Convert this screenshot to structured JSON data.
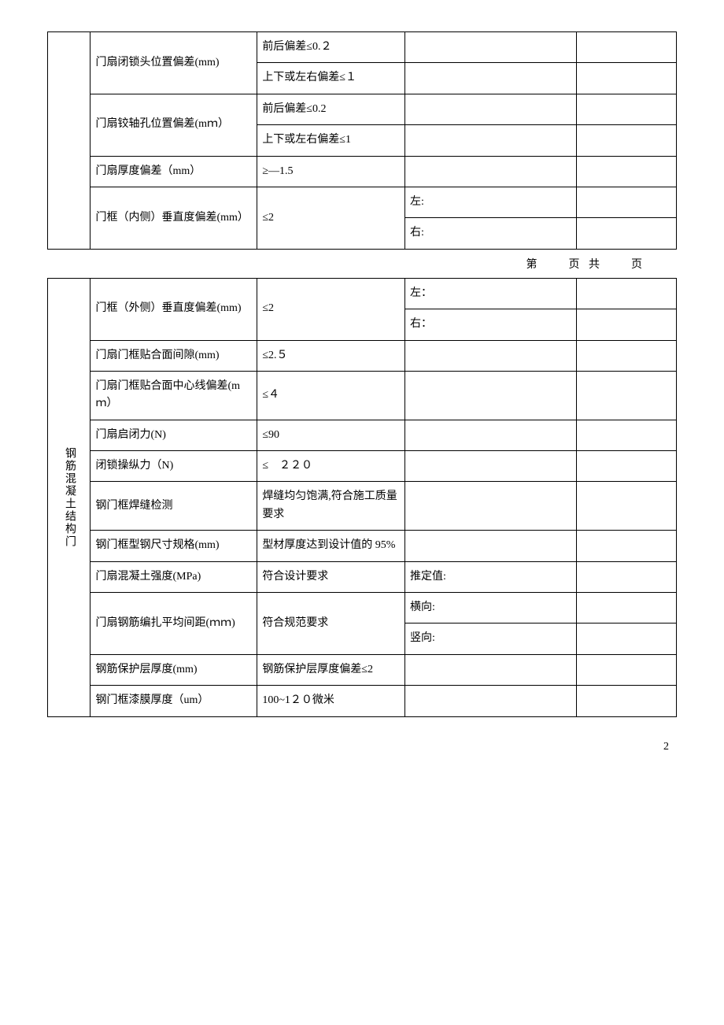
{
  "table1": {
    "rows": [
      {
        "item": "门扇闭锁头位置偏差(mm)",
        "spec": "前后偏差≤0.２",
        "val1": "",
        "val2": "",
        "rowspan": 2
      },
      {
        "item": "",
        "spec": "上下或左右偏差≤１",
        "val1": "",
        "val2": ""
      },
      {
        "item": "门扇铰轴孔位置偏差(mｍ）",
        "spec": "前后偏差≤0.2",
        "val1": "",
        "val2": "",
        "rowspan": 2
      },
      {
        "item": "",
        "spec": "上下或左右偏差≤1",
        "val1": "",
        "val2": ""
      },
      {
        "item": "门扇厚度偏差（mm）",
        "spec": "≥―1.5",
        "val1": "",
        "val2": ""
      },
      {
        "item": "门框（内侧）垂直度偏差(mm）",
        "spec": "≤2",
        "val1": "左:",
        "val2": "",
        "rowspan": 2,
        "spec_rowspan": 2
      },
      {
        "item": "",
        "spec": "",
        "val1": "右:",
        "val2": ""
      }
    ]
  },
  "page_info": "第　　页 共　　页",
  "table2": {
    "header": "钢筋混凝土结构门",
    "rows": [
      {
        "item": "门框（外侧）垂直度偏差(mm)",
        "spec": "≤2",
        "val1": "左：",
        "val2": "",
        "item_rowspan": 2,
        "spec_rowspan": 2
      },
      {
        "item": "",
        "spec": "",
        "val1": "右：",
        "val2": ""
      },
      {
        "item": "门扇门框贴合面间隙(mm)",
        "spec": "≤2.５",
        "val1": "",
        "val2": ""
      },
      {
        "item": "门扇门框贴合面中心线偏差(mｍ）",
        "spec": "≤４",
        "val1": "",
        "val2": ""
      },
      {
        "item": "门扇启闭力(N)",
        "spec": "≤90",
        "val1": "",
        "val2": ""
      },
      {
        "item": "闭锁操纵力（N)",
        "spec": "≤　２２０",
        "val1": "",
        "val2": ""
      },
      {
        "item": "钢门框焊缝检测",
        "spec": "焊缝均匀饱满,符合施工质量要求",
        "val1": "",
        "val2": ""
      },
      {
        "item": "钢门框型钢尺寸规格(mm)",
        "spec": "型材厚度达到设计值的 95%",
        "val1": "",
        "val2": ""
      },
      {
        "item": "门扇混凝土强度(MPa)",
        "spec": "符合设计要求",
        "val1": "推定值:",
        "val2": ""
      },
      {
        "item": "门扇钢筋编扎平均间距(ｍｍ)",
        "spec": "符合规范要求",
        "val1": "横向:",
        "val2": "",
        "item_rowspan": 2,
        "spec_rowspan": 2
      },
      {
        "item": "",
        "spec": "",
        "val1": "竖向:",
        "val2": ""
      },
      {
        "item": "钢筋保护层厚度(mm)",
        "spec": "钢筋保护层厚度偏差≤2",
        "val1": "",
        "val2": ""
      },
      {
        "item": "钢门框漆膜厚度（um）",
        "spec": "100~1２０微米",
        "val1": "",
        "val2": ""
      }
    ]
  },
  "page_num": "2"
}
